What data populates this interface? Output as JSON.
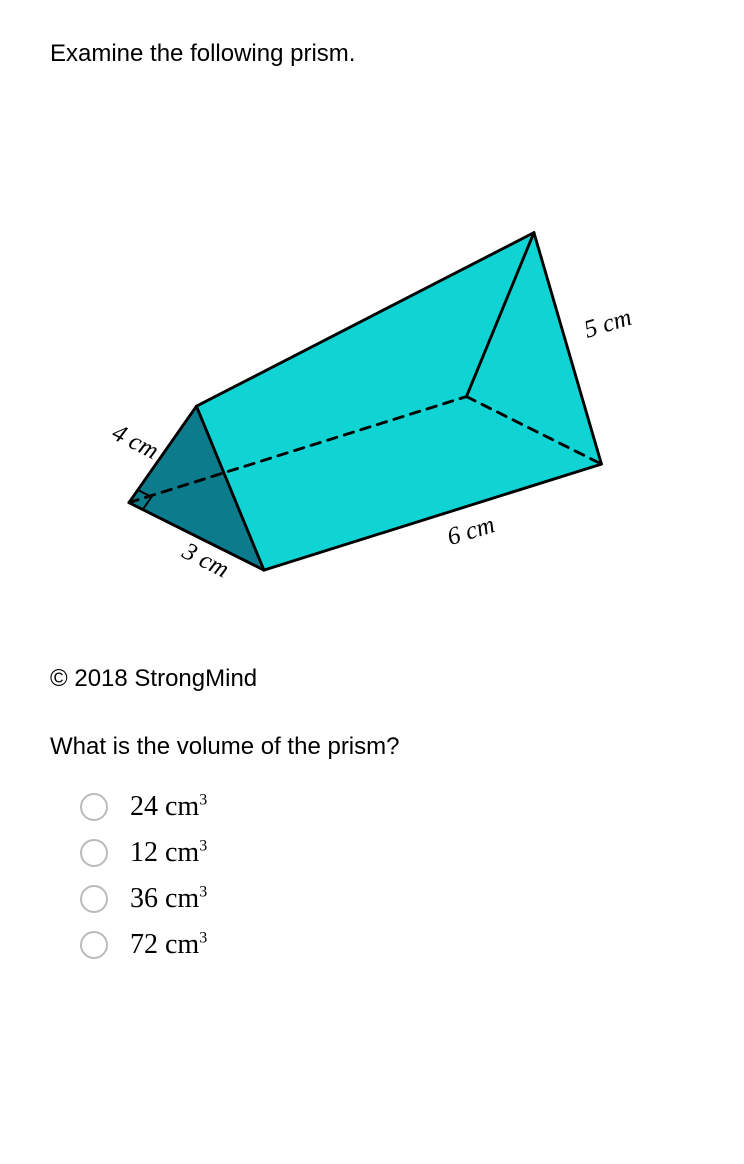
{
  "prompt": "Examine the following prism.",
  "copyright": "© 2018 StrongMind",
  "question": "What is the volume of the prism?",
  "prism": {
    "fill_top": "#12e7e7",
    "fill_front": "#0c7c8c",
    "fill_side": "#10d3d3",
    "stroke": "#000000",
    "stroke_width": 3,
    "dash": "10,8",
    "labels": {
      "left": "4 cm",
      "bottom_front": "3 cm",
      "length": "6 cm",
      "right": "5 cm"
    },
    "geom": {
      "A": [
        80,
        430
      ],
      "B": [
        220,
        500
      ],
      "C": [
        150,
        330
      ],
      "D": [
        430,
        320
      ],
      "E": [
        570,
        390
      ],
      "F": [
        500,
        150
      ],
      "sq": 16
    }
  },
  "options": [
    {
      "value": "24",
      "unit": "cm",
      "exp": "3"
    },
    {
      "value": "12",
      "unit": "cm",
      "exp": "3"
    },
    {
      "value": "36",
      "unit": "cm",
      "exp": "3"
    },
    {
      "value": "72",
      "unit": "cm",
      "exp": "3"
    }
  ]
}
